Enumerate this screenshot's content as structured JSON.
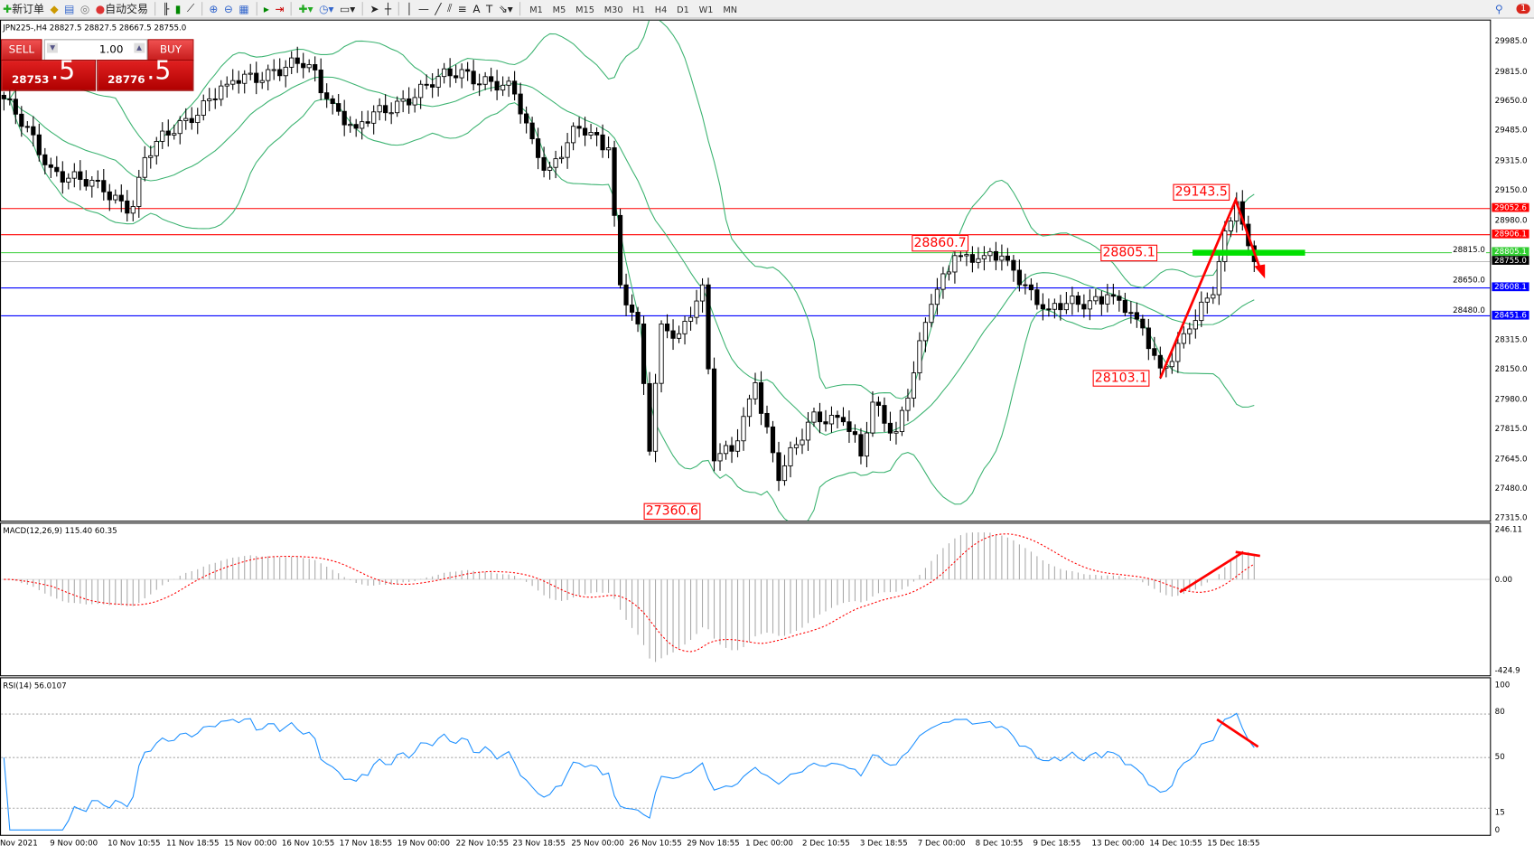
{
  "toolbar": {
    "new_order": "新订单",
    "auto_trading": "自动交易",
    "timeframes": [
      "M1",
      "M5",
      "M15",
      "M30",
      "H1",
      "H4",
      "D1",
      "W1",
      "MN"
    ],
    "notifications": "1"
  },
  "chart": {
    "header": "JPN225-,H4  28827.5 28827.5 28667.5 28755.0",
    "trade_panel": {
      "sell": "SELL",
      "buy": "BUY",
      "lot": "1.00",
      "bid_main": "28753",
      "bid_big": ".5",
      "ask_main": "28776",
      "ask_big": ".5"
    },
    "price_axis": [
      "29985.0",
      "29815.0",
      "29650.0",
      "29485.0",
      "29315.0",
      "29150.0",
      "28980.0",
      "28815.0",
      "28650.0",
      "28480.0",
      "28315.0",
      "28150.0",
      "27980.0",
      "27815.0",
      "27645.0",
      "27480.0",
      "27315.0"
    ],
    "levels": [
      {
        "price": 29052.6,
        "label": "29052.6",
        "color": "#ff0000"
      },
      {
        "price": 28906.1,
        "label": "28906.1",
        "color": "#ff0000"
      },
      {
        "price": 28805.1,
        "label": "28805.1",
        "color": "#32cd32"
      },
      {
        "price": 28755.0,
        "label": "28755.0",
        "color": "#000000"
      },
      {
        "price": 28608.1,
        "label": "28608.1",
        "color": "#0000ff"
      },
      {
        "price": 28451.6,
        "label": "28451.6",
        "color": "#0000ff"
      }
    ],
    "annotations": [
      "29143.5",
      "28860.7",
      "28805.1",
      "28103.1",
      "27360.6"
    ],
    "macd": {
      "label": "MACD(12,26,9) 115.40 60.35",
      "axis": [
        "246.11",
        "0.00",
        "-424.9"
      ]
    },
    "rsi": {
      "label": "RSI(14) 56.0107",
      "axis": [
        "100",
        "80",
        "50",
        "15",
        "0"
      ]
    },
    "dates": [
      "Nov 2021",
      "9 Nov 00:00",
      "10 Nov 10:55",
      "11 Nov 18:55",
      "15 Nov 00:00",
      "16 Nov 10:55",
      "17 Nov 18:55",
      "19 Nov 00:00",
      "22 Nov 10:55",
      "23 Nov 18:55",
      "25 Nov 00:00",
      "26 Nov 10:55",
      "29 Nov 18:55",
      "1 Dec 00:00",
      "2 Dec 10:55",
      "3 Dec 18:55",
      "7 Dec 00:00",
      "8 Dec 10:55",
      "9 Dec 18:55",
      "13 Dec 00:00",
      "14 Dec 10:55",
      "15 Dec 18:55"
    ]
  },
  "chart_data": {
    "type": "candlestick",
    "symbol": "JPN225-",
    "timeframe": "H4",
    "ylim": [
      27315,
      29985
    ],
    "close_points": [
      [
        0,
        29667
      ],
      [
        8,
        29283
      ],
      [
        17,
        29146
      ],
      [
        22,
        29064
      ],
      [
        24,
        29338
      ],
      [
        31,
        29557
      ],
      [
        38,
        29749
      ],
      [
        46,
        29831
      ],
      [
        52,
        29859
      ],
      [
        55,
        29667
      ],
      [
        60,
        29502
      ],
      [
        68,
        29667
      ],
      [
        78,
        29831
      ],
      [
        87,
        29694
      ],
      [
        91,
        29338
      ],
      [
        93,
        29283
      ],
      [
        98,
        29502
      ],
      [
        103,
        29393
      ],
      [
        105,
        28625
      ],
      [
        108,
        28406
      ],
      [
        110,
        27693
      ],
      [
        112,
        28406
      ],
      [
        115,
        28351
      ],
      [
        119,
        28625
      ],
      [
        121,
        27639
      ],
      [
        124,
        27693
      ],
      [
        128,
        28077
      ],
      [
        132,
        27529
      ],
      [
        138,
        27913
      ],
      [
        143,
        27858
      ],
      [
        146,
        27666
      ],
      [
        148,
        27968
      ],
      [
        152,
        27803
      ],
      [
        155,
        28132
      ],
      [
        158,
        28516
      ],
      [
        162,
        28789
      ],
      [
        167,
        28789
      ],
      [
        171,
        28762
      ],
      [
        174,
        28625
      ],
      [
        178,
        28488
      ],
      [
        183,
        28516
      ],
      [
        188,
        28570
      ],
      [
        193,
        28433
      ],
      [
        197,
        28159
      ],
      [
        202,
        28378
      ],
      [
        206,
        28570
      ],
      [
        208,
        28927
      ],
      [
        210,
        29091
      ],
      [
        212,
        28844
      ],
      [
        213,
        28755
      ]
    ],
    "indicators": [
      "Bollinger Bands(20)",
      "MACD(12,26,9)",
      "RSI(14)"
    ],
    "colors": {
      "bands": "#3cb371",
      "macd_signal": "#ff0000",
      "rsi": "#1e90ff",
      "annotation": "#ff0000"
    }
  }
}
